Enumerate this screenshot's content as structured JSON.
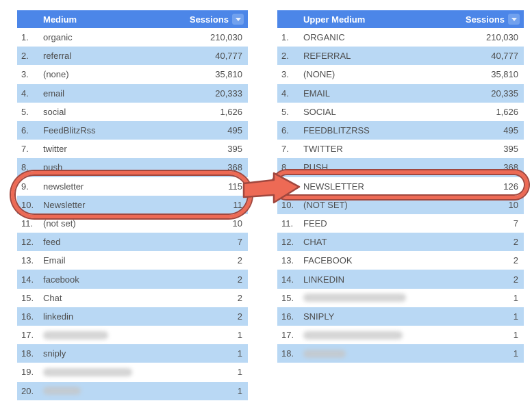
{
  "colors": {
    "header_bg": "#4c86e8",
    "header_text": "#ffffff",
    "alt_row_bg": "#b9d8f4",
    "row_text": "#4e4e4e",
    "sort_button_bg": "#71a1ee",
    "annotation_fill": "#ed6a55",
    "annotation_outline": "#a0473e"
  },
  "tables": [
    {
      "header": {
        "dimension": "Medium",
        "metric": "Sessions",
        "sort_icon": "triangle-down"
      },
      "rows": [
        {
          "n": "1.",
          "label": "organic",
          "value": "210,030"
        },
        {
          "n": "2.",
          "label": "referral",
          "value": "40,777"
        },
        {
          "n": "3.",
          "label": "(none)",
          "value": "35,810"
        },
        {
          "n": "4.",
          "label": "email",
          "value": "20,333"
        },
        {
          "n": "5.",
          "label": "social",
          "value": "1,626"
        },
        {
          "n": "6.",
          "label": "FeedBlitzRss",
          "value": "495"
        },
        {
          "n": "7.",
          "label": "twitter",
          "value": "395"
        },
        {
          "n": "8.",
          "label": "push",
          "value": "368"
        },
        {
          "n": "9.",
          "label": "newsletter",
          "value": "115"
        },
        {
          "n": "10.",
          "label": "Newsletter",
          "value": "11"
        },
        {
          "n": "11.",
          "label": "(not set)",
          "value": "10"
        },
        {
          "n": "12.",
          "label": "feed",
          "value": "7"
        },
        {
          "n": "13.",
          "label": "Email",
          "value": "2"
        },
        {
          "n": "14.",
          "label": "facebook",
          "value": "2"
        },
        {
          "n": "15.",
          "label": "Chat",
          "value": "2"
        },
        {
          "n": "16.",
          "label": "linkedin",
          "value": "2"
        },
        {
          "n": "17.",
          "label": "",
          "blurred": true,
          "blur_width": 95,
          "value": "1"
        },
        {
          "n": "18.",
          "label": "sniply",
          "value": "1"
        },
        {
          "n": "19.",
          "label": "",
          "blurred": true,
          "blur_width": 130,
          "value": "1"
        },
        {
          "n": "20.",
          "label": "",
          "blurred": true,
          "blur_width": 55,
          "value": "1"
        }
      ]
    },
    {
      "header": {
        "dimension": "Upper Medium",
        "metric": "Sessions",
        "sort_icon": "triangle-down"
      },
      "rows": [
        {
          "n": "1.",
          "label": "ORGANIC",
          "value": "210,030"
        },
        {
          "n": "2.",
          "label": "REFERRAL",
          "value": "40,777"
        },
        {
          "n": "3.",
          "label": "(NONE)",
          "value": "35,810"
        },
        {
          "n": "4.",
          "label": "EMAIL",
          "value": "20,335"
        },
        {
          "n": "5.",
          "label": "SOCIAL",
          "value": "1,626"
        },
        {
          "n": "6.",
          "label": "FEEDBLITZRSS",
          "value": "495"
        },
        {
          "n": "7.",
          "label": "TWITTER",
          "value": "395"
        },
        {
          "n": "8.",
          "label": "PUSH",
          "value": "368"
        },
        {
          "n": "9.",
          "label": "NEWSLETTER",
          "value": "126"
        },
        {
          "n": "10.",
          "label": "(NOT SET)",
          "value": "10"
        },
        {
          "n": "11.",
          "label": "FEED",
          "value": "7"
        },
        {
          "n": "12.",
          "label": "CHAT",
          "value": "2"
        },
        {
          "n": "13.",
          "label": "FACEBOOK",
          "value": "2"
        },
        {
          "n": "14.",
          "label": "LINKEDIN",
          "value": "2"
        },
        {
          "n": "15.",
          "label": "",
          "blurred": true,
          "blur_width": 150,
          "value": "1"
        },
        {
          "n": "16.",
          "label": "SNIPLY",
          "value": "1"
        },
        {
          "n": "17.",
          "label": "",
          "blurred": true,
          "blur_width": 145,
          "value": "1"
        },
        {
          "n": "18.",
          "label": "",
          "blurred": true,
          "blur_width": 62,
          "value": "1"
        }
      ]
    }
  ],
  "annotation": {
    "left_oval_rows": "9-10",
    "right_oval_row": "9",
    "shape": "arrow-right"
  }
}
